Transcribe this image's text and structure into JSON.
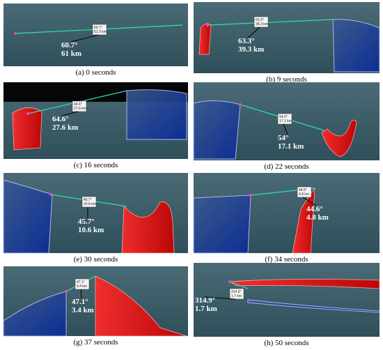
{
  "panels": [
    {
      "caption": "(a) 0 seconds",
      "box": [
        "60.7°",
        "61.0 km"
      ],
      "label": [
        "60.7°",
        "61 km"
      ]
    },
    {
      "caption": "(b) 9 seconds",
      "box": [
        "63.3°",
        "39.3 km"
      ],
      "label": [
        "63.3°",
        "39.3 km"
      ]
    },
    {
      "caption": "(c) 16 seconds",
      "box": [
        "64.6°",
        "27.6 km"
      ],
      "label": [
        "64.6°",
        "27.6 km"
      ]
    },
    {
      "caption": "(d) 22 seconds",
      "box": [
        "54.0°",
        "17.1 km"
      ],
      "label": [
        "54°",
        "17.1 km"
      ]
    },
    {
      "caption": "(e) 30 seconds",
      "box": [
        "45.7°",
        "10.6 km"
      ],
      "label": [
        "45.7°",
        "10.6 km"
      ]
    },
    {
      "caption": "(f) 34 seconds",
      "box": [
        "44.6°",
        "4.8 km"
      ],
      "label": [
        "44.6°",
        "4.8 km"
      ]
    },
    {
      "caption": "(g) 37 seconds",
      "box": [
        "47.1°",
        "3.4 km"
      ],
      "label": [
        "47.1°",
        "3.4 km"
      ]
    },
    {
      "caption": "(h) 50 seconds",
      "box": [
        "314.9°",
        "1.7 km"
      ],
      "label": [
        "314.9°",
        "1.7 km"
      ]
    }
  ]
}
